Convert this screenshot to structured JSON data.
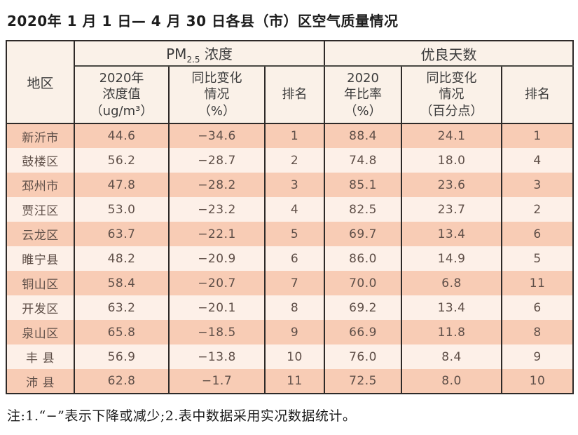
{
  "title": "2020年 1 月 1 日— 4 月 30 日各县（市）区空气质量情况",
  "table": {
    "corner_header": "地区",
    "pm_group": {
      "prefix": "PM",
      "sub": "2.5",
      "suffix": " 浓度"
    },
    "good_group_label": "优良天数",
    "sub_headers": [
      "2020年\n浓度值\n（ug/m³）",
      "同比变化\n情况\n（%）",
      "排名",
      "2020\n年比率\n（%）",
      "同比变化\n情况\n（百分点）",
      "排名"
    ],
    "rows": [
      {
        "region": "新沂市",
        "values": [
          "44.6",
          "−34.6",
          "1",
          "88.4",
          "24.1",
          "1"
        ]
      },
      {
        "region": "鼓楼区",
        "values": [
          "56.2",
          "−28.7",
          "2",
          "74.8",
          "18.0",
          "4"
        ]
      },
      {
        "region": "邳州市",
        "values": [
          "47.8",
          "−28.2",
          "3",
          "85.1",
          "23.6",
          "3"
        ]
      },
      {
        "region": "贾汪区",
        "values": [
          "53.0",
          "−23.2",
          "4",
          "82.5",
          "23.7",
          "2"
        ]
      },
      {
        "region": "云龙区",
        "values": [
          "63.7",
          "−22.1",
          "5",
          "69.7",
          "13.4",
          "6"
        ]
      },
      {
        "region": "睢宁县",
        "values": [
          "48.2",
          "−20.9",
          "6",
          "86.0",
          "14.9",
          "5"
        ]
      },
      {
        "region": "铜山区",
        "values": [
          "58.4",
          "−20.7",
          "7",
          "70.0",
          "6.8",
          "11"
        ]
      },
      {
        "region": "开发区",
        "values": [
          "63.2",
          "−20.1",
          "8",
          "69.2",
          "13.4",
          "6"
        ]
      },
      {
        "region": "泉山区",
        "values": [
          "65.8",
          "−18.5",
          "9",
          "66.9",
          "11.8",
          "8"
        ]
      },
      {
        "region": "丰 县",
        "values": [
          "56.9",
          "−13.8",
          "10",
          "76.0",
          "8.4",
          "9"
        ]
      },
      {
        "region": "沛 县",
        "values": [
          "62.8",
          "−1.7",
          "11",
          "72.5",
          "8.0",
          "10"
        ]
      }
    ]
  },
  "footnote": "注:1.“−”表示下降或减少;2.表中数据采用实况数据统计。",
  "colors": {
    "stripe_dark": "#f8ccb5",
    "stripe_light": "#fdf0e8",
    "header_bg": "#faf1e8",
    "border": "#2e2a28",
    "data_text": "#5f4f48"
  },
  "chart_data": {
    "type": "table",
    "title": "2020年 1 月 1 日— 4 月 30 日各县（市）区空气质量情况",
    "columns": [
      "地区",
      "PM2.5 2020年浓度值(ug/m³)",
      "PM2.5 同比变化情况(%)",
      "PM2.5 排名",
      "优良天数 2020年比率(%)",
      "优良天数 同比变化情况(百分点)",
      "优良天数 排名"
    ],
    "rows": [
      [
        "新沂市",
        44.6,
        -34.6,
        1,
        88.4,
        24.1,
        1
      ],
      [
        "鼓楼区",
        56.2,
        -28.7,
        2,
        74.8,
        18.0,
        4
      ],
      [
        "邳州市",
        47.8,
        -28.2,
        3,
        85.1,
        23.6,
        3
      ],
      [
        "贾汪区",
        53.0,
        -23.2,
        4,
        82.5,
        23.7,
        2
      ],
      [
        "云龙区",
        63.7,
        -22.1,
        5,
        69.7,
        13.4,
        6
      ],
      [
        "睢宁县",
        48.2,
        -20.9,
        6,
        86.0,
        14.9,
        5
      ],
      [
        "铜山区",
        58.4,
        -20.7,
        7,
        70.0,
        6.8,
        11
      ],
      [
        "开发区",
        63.2,
        -20.1,
        8,
        69.2,
        13.4,
        6
      ],
      [
        "泉山区",
        65.8,
        -18.5,
        9,
        66.9,
        11.8,
        8
      ],
      [
        "丰县",
        56.9,
        -13.8,
        10,
        76.0,
        8.4,
        9
      ],
      [
        "沛县",
        62.8,
        -1.7,
        11,
        72.5,
        8.0,
        10
      ]
    ]
  }
}
